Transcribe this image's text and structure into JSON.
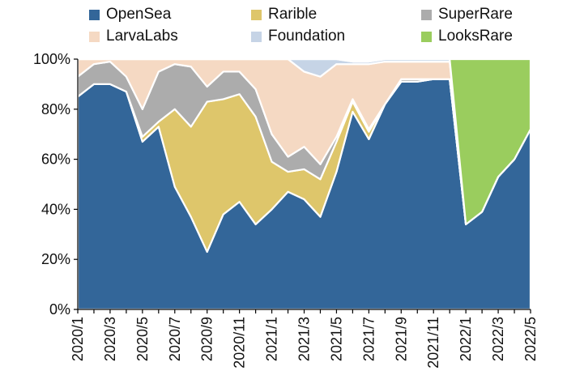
{
  "chart_data": {
    "type": "area",
    "stacked": true,
    "title": "",
    "xlabel": "",
    "ylabel": "",
    "ylim": [
      0,
      100
    ],
    "y_ticks": [
      "0%",
      "20%",
      "40%",
      "60%",
      "80%",
      "100%"
    ],
    "x_tick_labels": [
      "2020/1",
      "2020/3",
      "2020/5",
      "2020/7",
      "2020/9",
      "2020/11",
      "2021/1",
      "2021/3",
      "2021/5",
      "2021/7",
      "2021/9",
      "2021/11",
      "2022/1",
      "2022/3",
      "2022/5"
    ],
    "categories": [
      "2020/1",
      "2020/2",
      "2020/3",
      "2020/4",
      "2020/5",
      "2020/6",
      "2020/7",
      "2020/8",
      "2020/9",
      "2020/10",
      "2020/11",
      "2020/12",
      "2021/1",
      "2021/2",
      "2021/3",
      "2021/4",
      "2021/5",
      "2021/6",
      "2021/7",
      "2021/8",
      "2021/9",
      "2021/10",
      "2021/11",
      "2021/12",
      "2022/1",
      "2022/2",
      "2022/3",
      "2022/4",
      "2022/5"
    ],
    "series": [
      {
        "name": "OpenSea",
        "color": "#336699",
        "values": [
          85,
          90,
          90,
          87,
          67,
          73,
          49,
          37,
          23,
          38,
          43,
          34,
          40,
          47,
          44,
          37,
          55,
          79,
          68,
          82,
          91,
          91,
          92,
          92,
          34,
          39,
          53,
          60,
          72
        ]
      },
      {
        "name": "Rarible",
        "color": "#DEC66B",
        "values": [
          0,
          0,
          0,
          0,
          2,
          2,
          31,
          36,
          60,
          46,
          43,
          43,
          19,
          8,
          12,
          15,
          12,
          4,
          3,
          0,
          0,
          0,
          0,
          0,
          0,
          0,
          0,
          0,
          0
        ]
      },
      {
        "name": "SuperRare",
        "color": "#ACACAC",
        "values": [
          8,
          8,
          9,
          6,
          11,
          20,
          18,
          24,
          6,
          11,
          9,
          11,
          11,
          6,
          9,
          6,
          2,
          1,
          1,
          0,
          1,
          1,
          0,
          0,
          0,
          0,
          0,
          0,
          0
        ]
      },
      {
        "name": "LarvaLabs",
        "color": "#F5D9C3",
        "values": [
          7,
          2,
          1,
          7,
          20,
          5,
          2,
          3,
          11,
          5,
          5,
          12,
          30,
          39,
          30,
          35,
          29,
          14,
          26,
          17,
          7,
          7,
          7,
          7,
          0,
          0,
          0,
          0,
          0
        ]
      },
      {
        "name": "Foundation",
        "color": "#C6D4E6",
        "values": [
          0,
          0,
          0,
          0,
          0,
          0,
          0,
          0,
          0,
          0,
          0,
          0,
          0,
          0,
          5,
          7,
          2,
          1,
          1,
          1,
          1,
          1,
          1,
          1,
          0,
          0,
          0,
          0,
          0
        ]
      },
      {
        "name": "LooksRare",
        "color": "#9ACD5E",
        "values": [
          0,
          0,
          0,
          0,
          0,
          0,
          0,
          0,
          0,
          0,
          0,
          0,
          0,
          0,
          0,
          0,
          0,
          0,
          0,
          0,
          0,
          0,
          0,
          0,
          66,
          61,
          47,
          40,
          28
        ]
      }
    ]
  }
}
